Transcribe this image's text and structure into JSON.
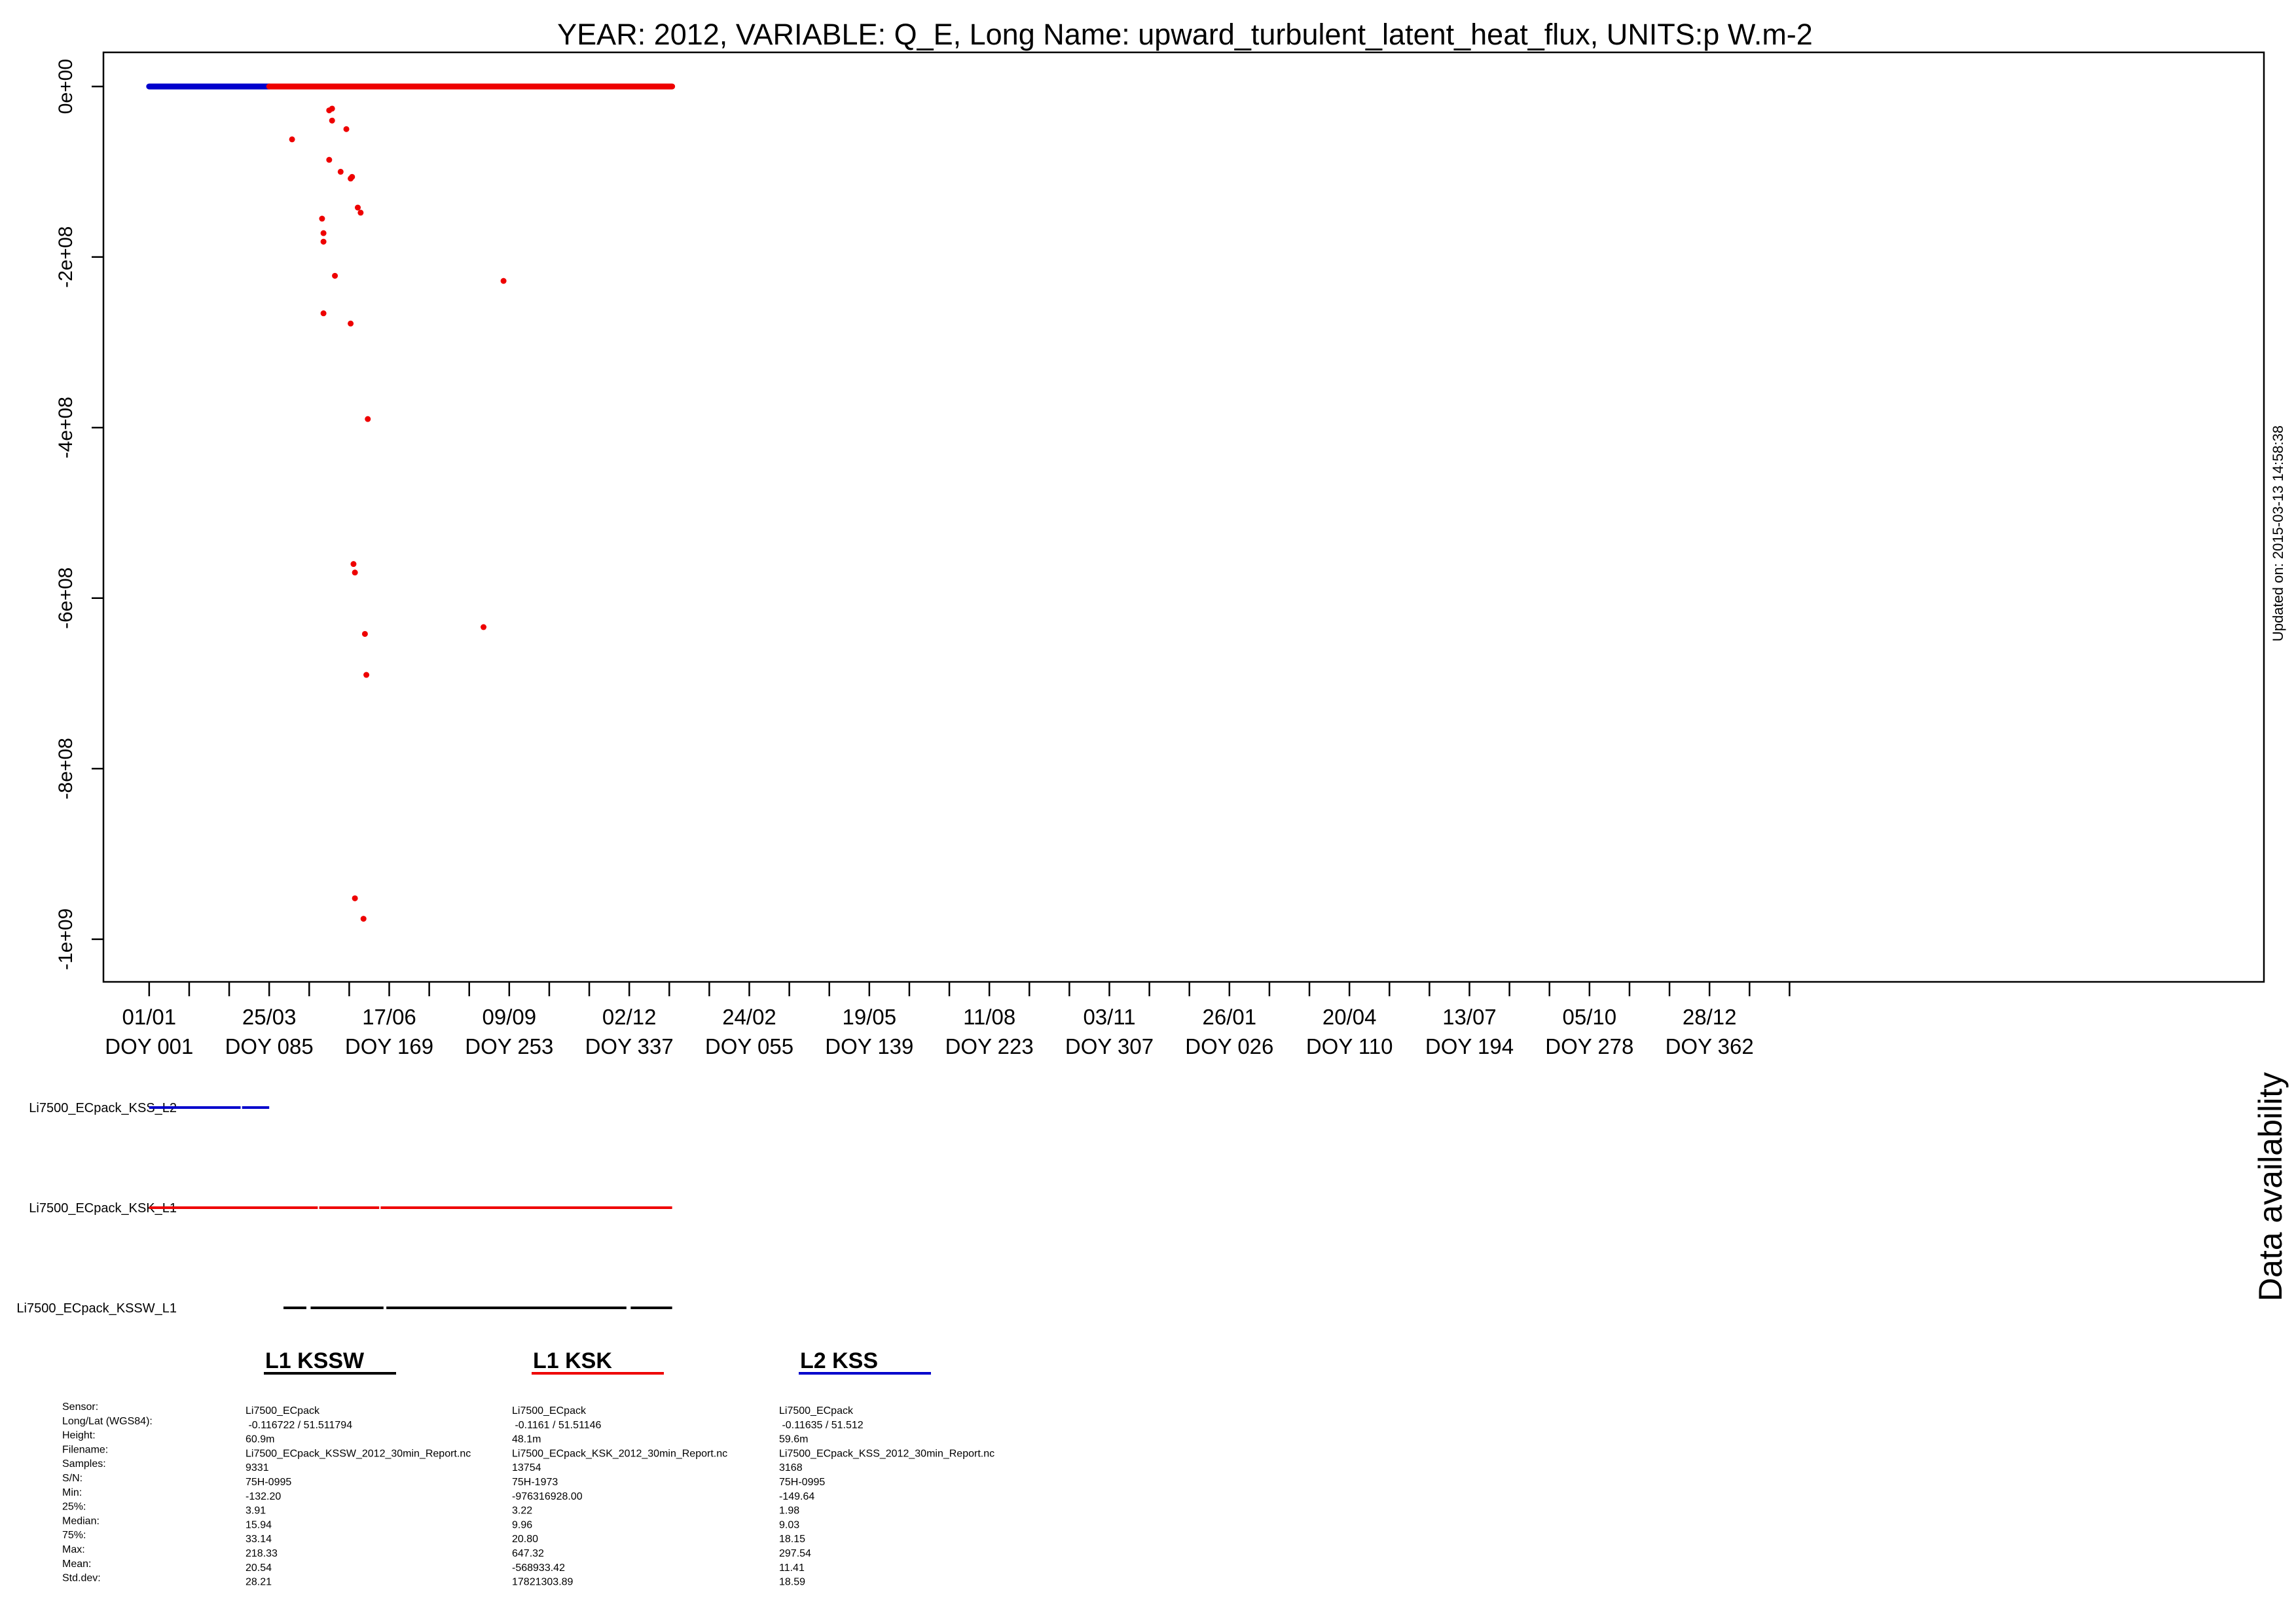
{
  "title": "YEAR: 2012, VARIABLE: Q_E, Long Name: upward_turbulent_latent_heat_flux, UNITS:p W.m-2",
  "updated": "Updated on: 2015-03-13 14:58:38",
  "availability_title": "Data availability",
  "colors": {
    "KSS_L2": "#0000cc",
    "KSK_L1": "#ee0000",
    "KSSW_L1": "#000000",
    "axis": "#000000"
  },
  "chart_data": {
    "type": "scatter",
    "title": "YEAR: 2012, VARIABLE: Q_E, Long Name: upward_turbulent_latent_heat_flux, UNITS:p W.m-2",
    "xlabel": "",
    "ylabel": "",
    "ylim": [
      -1050000000,
      40000000
    ],
    "xlim": [
      -32,
      1480
    ],
    "y_ticks": [
      0,
      -200000000,
      -400000000,
      -600000000,
      -800000000,
      -1000000000
    ],
    "y_tick_labels": [
      "0e+00",
      "-2e+08",
      "-4e+08",
      "-6e+08",
      "-8e+08",
      "-1e+09"
    ],
    "x_ticks_labeled": [
      {
        "x": 0,
        "date": "01/01",
        "doy": "DOY 001"
      },
      {
        "x": 84,
        "date": "25/03",
        "doy": "DOY 085"
      },
      {
        "x": 168,
        "date": "17/06",
        "doy": "DOY 169"
      },
      {
        "x": 252,
        "date": "09/09",
        "doy": "DOY 253"
      },
      {
        "x": 336,
        "date": "02/12",
        "doy": "DOY 337"
      },
      {
        "x": 420,
        "date": "24/02",
        "doy": "DOY 055"
      },
      {
        "x": 504,
        "date": "19/05",
        "doy": "DOY 139"
      },
      {
        "x": 588,
        "date": "11/08",
        "doy": "DOY 223"
      },
      {
        "x": 672,
        "date": "03/11",
        "doy": "DOY 307"
      },
      {
        "x": 756,
        "date": "26/01",
        "doy": "DOY 026"
      },
      {
        "x": 840,
        "date": "20/04",
        "doy": "DOY 110"
      },
      {
        "x": 924,
        "date": "13/07",
        "doy": "DOY 194"
      },
      {
        "x": 1008,
        "date": "05/10",
        "doy": "DOY 278"
      },
      {
        "x": 1092,
        "date": "28/12",
        "doy": "DOY 362"
      }
    ],
    "x_ticks_minor": [
      0,
      28,
      56,
      84,
      112,
      140,
      168,
      196,
      224,
      252,
      280,
      308,
      336,
      364,
      392,
      420,
      448,
      476,
      504,
      532,
      560,
      588,
      616,
      644,
      672,
      700,
      728,
      756,
      784,
      812,
      840,
      868,
      896,
      924,
      952,
      980,
      1008,
      1036,
      1064,
      1092,
      1120,
      1148
    ],
    "grid": false,
    "series": [
      {
        "name": "L2 KSS",
        "color": "#0000cc",
        "line_range": [
          0,
          84
        ],
        "line_value": 0
      },
      {
        "name": "L1 KSK",
        "color": "#ee0000",
        "line_range": [
          84,
          366
        ],
        "line_value": 0,
        "points": [
          [
            100,
            -62000000
          ],
          [
            126,
            -28000000
          ],
          [
            128,
            -26000000
          ],
          [
            128,
            -40000000
          ],
          [
            138,
            -50000000
          ],
          [
            126,
            -86000000
          ],
          [
            134,
            -100000000
          ],
          [
            141,
            -108000000
          ],
          [
            142,
            -106000000
          ],
          [
            146,
            -142000000
          ],
          [
            148,
            -148000000
          ],
          [
            121,
            -155000000
          ],
          [
            122,
            -172000000
          ],
          [
            122,
            -182000000
          ],
          [
            130,
            -222000000
          ],
          [
            122,
            -266000000
          ],
          [
            141,
            -278000000
          ],
          [
            153,
            -390000000
          ],
          [
            143,
            -560000000
          ],
          [
            144,
            -570000000
          ],
          [
            151,
            -642000000
          ],
          [
            152,
            -690000000
          ],
          [
            144,
            -952000000
          ],
          [
            150,
            -976000000
          ],
          [
            248,
            -228000000
          ],
          [
            234,
            -634000000
          ]
        ]
      },
      {
        "name": "L1 KSSW",
        "color": "#000000"
      }
    ]
  },
  "availability": [
    {
      "label": "Li7500_ECpack_KSS_L2",
      "color": "#0000cc",
      "ranges": [
        [
          0,
          64
        ],
        [
          65,
          84
        ]
      ]
    },
    {
      "label": "Li7500_ECpack_KSK_L1",
      "color": "#ee0000",
      "ranges": [
        [
          0,
          118
        ],
        [
          119,
          161
        ],
        [
          162,
          366
        ]
      ]
    },
    {
      "label": "Li7500_ECpack_KSSW_L1",
      "color": "#000000",
      "ranges": [
        [
          94,
          110
        ],
        [
          113,
          164
        ],
        [
          166,
          334
        ],
        [
          337,
          366
        ]
      ]
    }
  ],
  "legend": [
    {
      "label": "L1 KSSW",
      "color": "#000000"
    },
    {
      "label": "L1 KSK",
      "color": "#ee0000"
    },
    {
      "label": "L2 KSS",
      "color": "#0000cc"
    }
  ],
  "stats": {
    "headers": [
      "Sensor:",
      "Long/Lat (WGS84):",
      "Height:",
      "Filename:",
      "Samples:",
      "S/N:",
      "Min:",
      "25%:",
      "Median:",
      "75%:",
      "Max:",
      "Mean:",
      "Std.dev:"
    ],
    "columns": [
      [
        "Li7500_ECpack",
        " -0.116722 / 51.511794",
        "60.9m",
        "Li7500_ECpack_KSSW_2012_30min_Report.nc",
        "9331",
        "75H-0995",
        "-132.20",
        "3.91",
        "15.94",
        "33.14",
        "218.33",
        "20.54",
        "28.21"
      ],
      [
        "Li7500_ECpack",
        " -0.1161 / 51.51146",
        "48.1m",
        "Li7500_ECpack_KSK_2012_30min_Report.nc",
        "13754",
        "75H-1973",
        "-976316928.00",
        "3.22",
        "9.96",
        "20.80",
        "647.32",
        "-568933.42",
        "17821303.89"
      ],
      [
        "Li7500_ECpack",
        " -0.11635 / 51.512",
        "59.6m",
        "Li7500_ECpack_KSS_2012_30min_Report.nc",
        "3168",
        "75H-0995",
        "-149.64",
        "1.98",
        "9.03",
        "18.15",
        "297.54",
        "11.41",
        "18.59"
      ]
    ]
  }
}
